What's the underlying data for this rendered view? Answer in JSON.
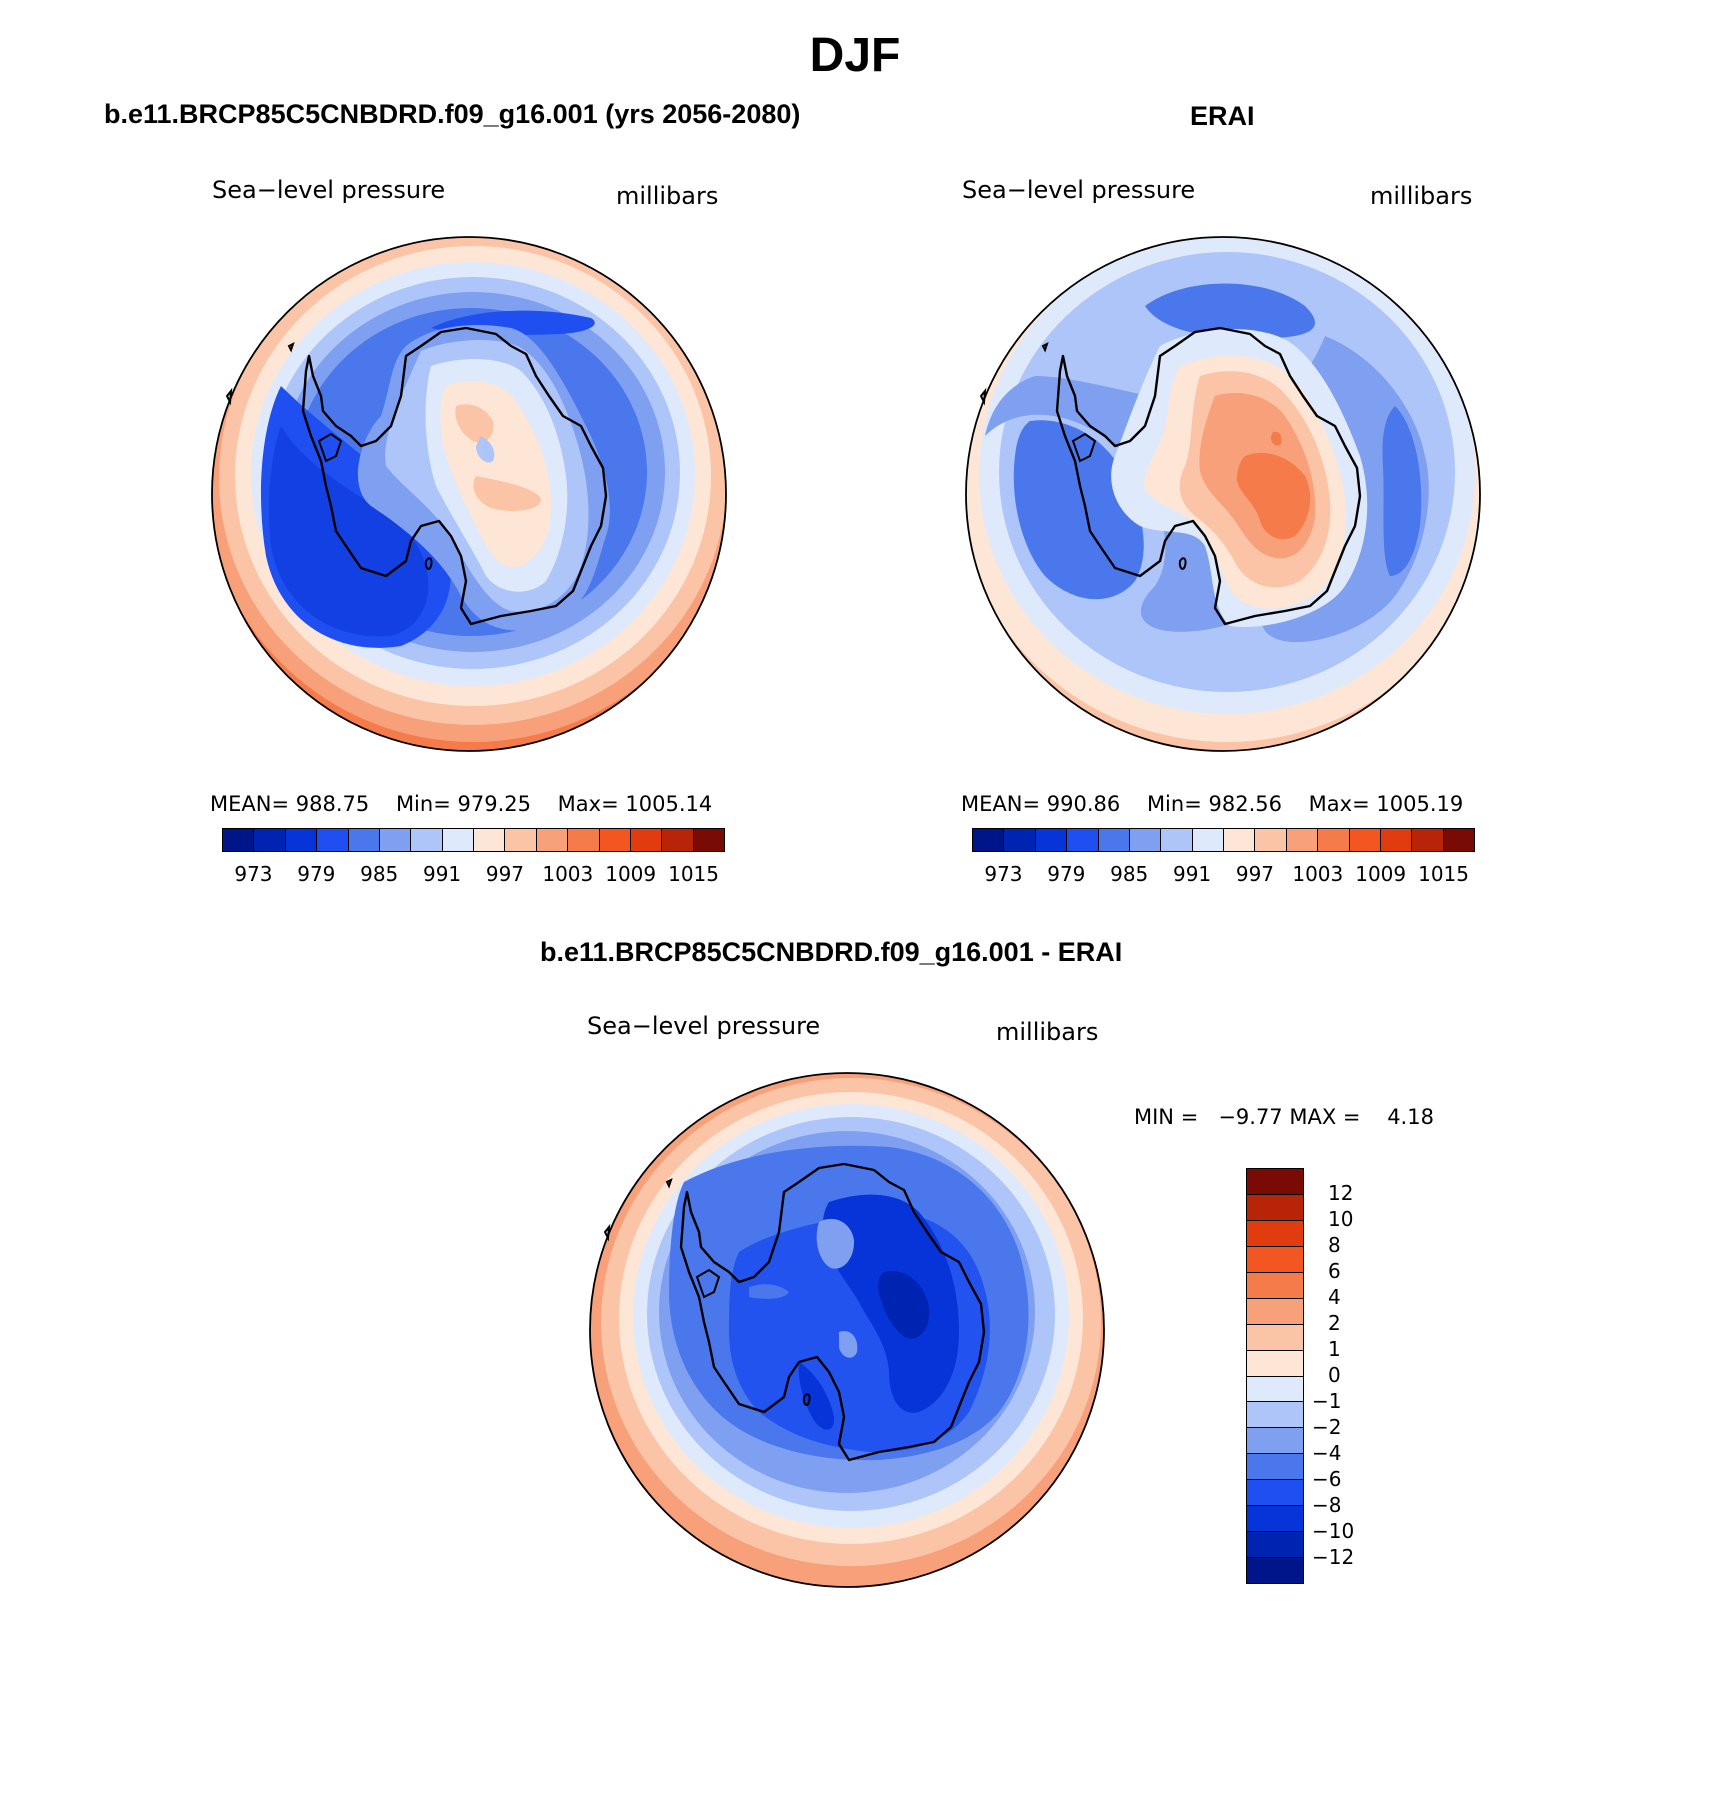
{
  "title": "DJF",
  "panels": {
    "model": {
      "title": "b.e11.BRCP85C5CNBDRD.f09_g16.001 (yrs 2056-2080)",
      "variable": "Sea−level pressure",
      "units": "millibars",
      "stats": {
        "mean_label": "MEAN=",
        "mean": "988.75",
        "min_label": "Min=",
        "min": "979.25",
        "max_label": "Max=",
        "max": "1005.14"
      }
    },
    "obs": {
      "title": "ERAI",
      "variable": "Sea−level pressure",
      "units": "millibars",
      "stats": {
        "mean_label": "MEAN=",
        "mean": "990.86",
        "min_label": "Min=",
        "min": "982.56",
        "max_label": "Max=",
        "max": "1005.19"
      }
    },
    "diff": {
      "title": "b.e11.BRCP85C5CNBDRD.f09_g16.001 - ERAI",
      "variable": "Sea−level pressure",
      "units": "millibars",
      "minmax_text": "MIN =   −9.77 MAX =    4.18"
    }
  },
  "colorbar_abs": {
    "tick_labels": [
      "973",
      "979",
      "985",
      "991",
      "997",
      "1003",
      "1009",
      "1015"
    ],
    "colors": [
      "#00158a",
      "#0024b2",
      "#0734d8",
      "#1f4ff0",
      "#4a78ec",
      "#7f9ff0",
      "#aec5fa",
      "#dfe9fc",
      "#fde6d6",
      "#fcc4a6",
      "#f7a07a",
      "#f67b4a",
      "#f45622",
      "#e03c10",
      "#b82408",
      "#7a0a04"
    ]
  },
  "colorbar_diff": {
    "tick_labels": [
      "12",
      "10",
      "8",
      "6",
      "4",
      "2",
      "1",
      "0",
      "−1",
      "−2",
      "−4",
      "−6",
      "−8",
      "−10",
      "−12"
    ],
    "colors": [
      "#7a0a04",
      "#b82408",
      "#e03c10",
      "#f45622",
      "#f67b4a",
      "#f7a07a",
      "#fcc4a6",
      "#fde6d6",
      "#dfe9fc",
      "#aec5fa",
      "#7f9ff0",
      "#4a78ec",
      "#1f4ff0",
      "#0734d8",
      "#0024b2",
      "#00158a"
    ]
  }
}
